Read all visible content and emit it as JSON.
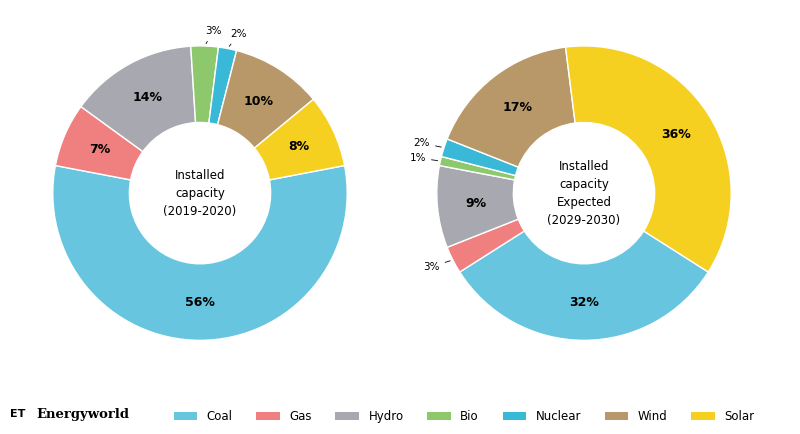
{
  "chart_data": [
    {
      "type": "pie",
      "title": "Installed\ncapacity\n(2019-2020)",
      "categories": [
        "Coal",
        "Gas",
        "Hydro",
        "Bio",
        "Nuclear",
        "Wind",
        "Solar"
      ],
      "values": [
        56,
        7,
        14,
        3,
        2,
        10,
        8
      ],
      "value_labels": [
        "56%",
        "7%",
        "14%",
        "3%",
        "2%",
        "10%",
        "8%"
      ],
      "colors": [
        "#67c5e0",
        "#f08080",
        "#a8a8b0",
        "#8dc86c",
        "#3ab8d8",
        "#b89868",
        "#f5d020"
      ],
      "data_labels": true,
      "legend": "lower center",
      "annotations": [
        "ET",
        "Energyworld"
      ]
    },
    {
      "type": "pie",
      "title": "Installed\ncapacity\nExpected\n(2029-2030)",
      "categories": [
        "Coal",
        "Gas",
        "Hydro",
        "Bio",
        "Nuclear",
        "Wind",
        "Solar"
      ],
      "values": [
        32,
        3,
        9,
        1,
        2,
        17,
        36
      ],
      "value_labels": [
        "32%",
        "3%",
        "9%",
        "1%",
        "2%",
        "17%",
        "36%"
      ],
      "colors": [
        "#67c5e0",
        "#f08080",
        "#a8a8b0",
        "#8dc86c",
        "#3ab8d8",
        "#b89868",
        "#f5d020"
      ],
      "data_labels": true
    }
  ]
}
